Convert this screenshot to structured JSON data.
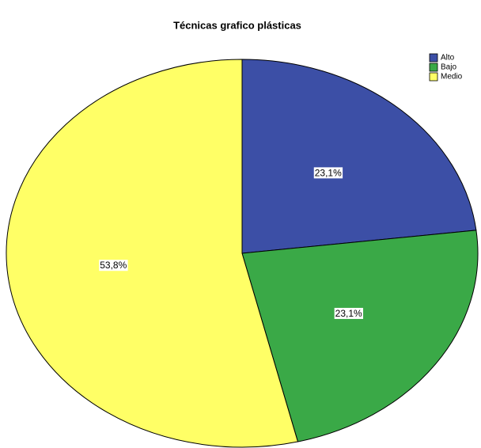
{
  "chart_data": {
    "type": "pie",
    "title": "Técnicas grafico plásticas",
    "categories": [
      "Alto",
      "Bajo",
      "Medio"
    ],
    "values": [
      23.1,
      23.1,
      53.8
    ],
    "value_labels": [
      "23,1%",
      "23,1%",
      "53,8%"
    ],
    "colors": [
      "#3c4fa6",
      "#3aa947",
      "#ffff66"
    ],
    "legend": "top-right"
  }
}
